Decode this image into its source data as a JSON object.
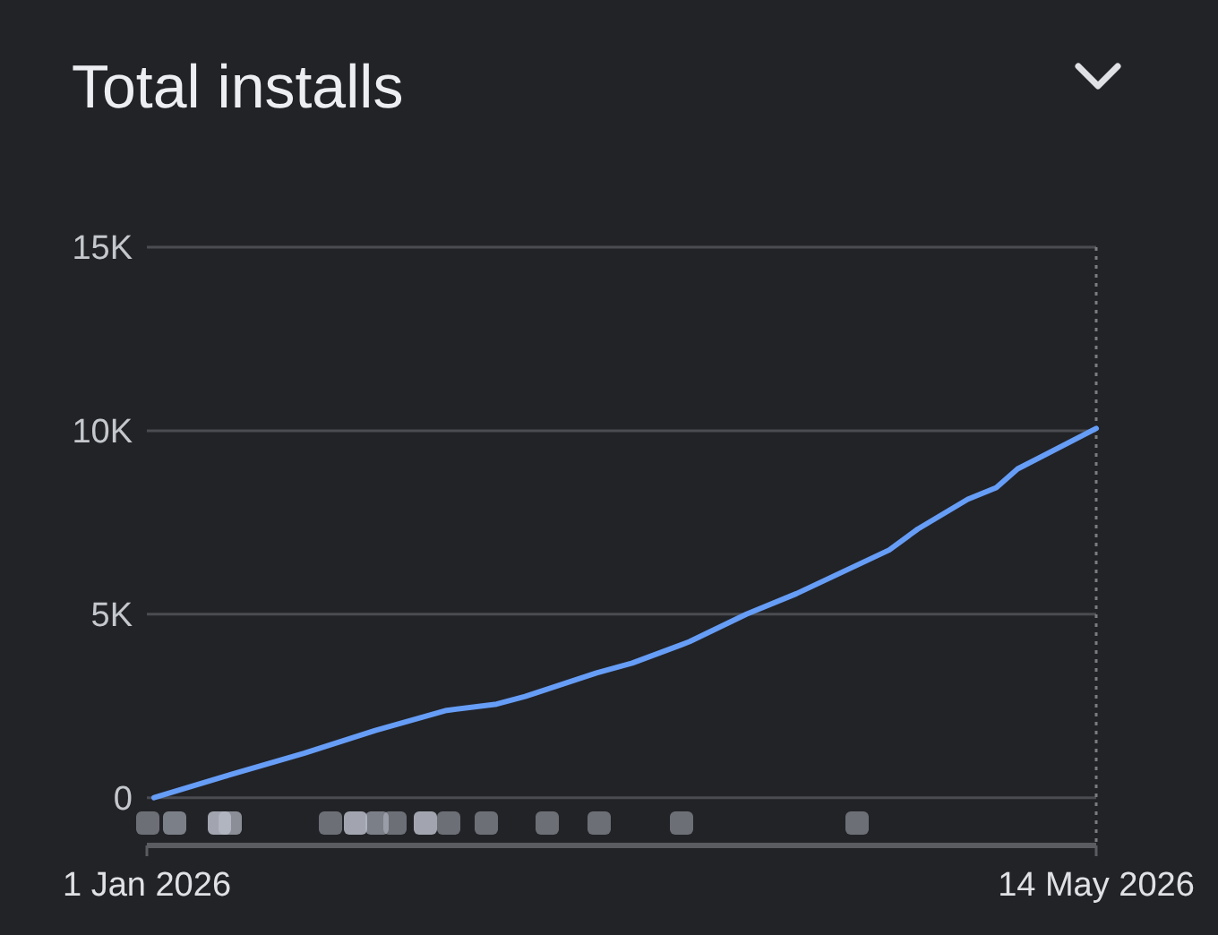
{
  "chart_data": {
    "type": "line",
    "title": "Total installs",
    "x": [
      "2026-01-02",
      "2026-01-12",
      "2026-01-23",
      "2026-02-02",
      "2026-02-12",
      "2026-02-19",
      "2026-02-23",
      "2026-03-05",
      "2026-03-10",
      "2026-03-18",
      "2026-03-26",
      "2026-04-02",
      "2026-04-15",
      "2026-04-19",
      "2026-04-26",
      "2026-04-30",
      "2026-05-03",
      "2026-05-14"
    ],
    "series": [
      {
        "color": "#669df6",
        "values": [
          0,
          590,
          1210,
          1830,
          2380,
          2550,
          2760,
          3400,
          3670,
          4250,
          5000,
          5560,
          6750,
          7320,
          8130,
          8450,
          8960,
          10060
        ]
      }
    ],
    "xlim": [
      "2026-01-01",
      "2026-05-14"
    ],
    "xticks": [
      {
        "value": "2026-01-01",
        "label": "1 Jan 2026"
      },
      {
        "value": "2026-05-14",
        "label": "14 May 2026"
      }
    ],
    "ylim": [
      -1300,
      15000
    ],
    "yticks": [
      {
        "value": 0,
        "label": "0"
      },
      {
        "value": 5000,
        "label": "5K"
      },
      {
        "value": 10000,
        "label": "10K"
      },
      {
        "value": 15000,
        "label": "15K"
      }
    ],
    "grid": "y",
    "marker": "none",
    "line_style": "solid",
    "ref_lines": [
      {
        "axis": "x",
        "value": "2026-05-14",
        "color": "#7a7c80",
        "line_style": "dotted"
      }
    ]
  }
}
